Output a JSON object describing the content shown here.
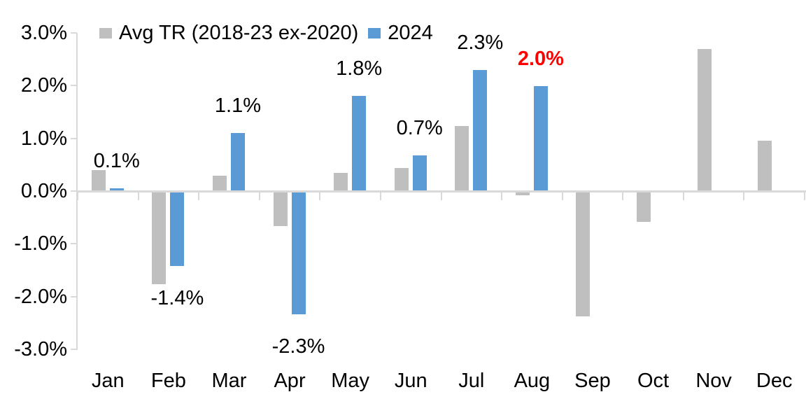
{
  "chart_data": {
    "type": "bar",
    "title": "",
    "xlabel": "",
    "ylabel": "",
    "categories": [
      "Jan",
      "Feb",
      "Mar",
      "Apr",
      "May",
      "Jun",
      "Jul",
      "Aug",
      "Sep",
      "Oct",
      "Nov",
      "Dec"
    ],
    "series": [
      {
        "name": "Avg TR (2018-23 ex-2020)",
        "color": "#BFBFBF",
        "values": [
          0.4,
          -1.76,
          0.29,
          -0.67,
          0.35,
          0.44,
          1.23,
          -0.08,
          -2.38,
          -0.58,
          2.7,
          0.95
        ]
      },
      {
        "name": "2024",
        "color": "#5B9BD5",
        "values": [
          0.05,
          -1.42,
          1.1,
          -2.33,
          1.81,
          0.68,
          2.29,
          1.99,
          null,
          null,
          null,
          null
        ]
      }
    ],
    "data_labels": [
      {
        "category": "Jan",
        "series": "2024",
        "text": "0.1%",
        "color": "#000000",
        "bold": false
      },
      {
        "category": "Feb",
        "series": "2024",
        "text": "-1.4%",
        "color": "#000000",
        "bold": false
      },
      {
        "category": "Mar",
        "series": "2024",
        "text": "1.1%",
        "color": "#000000",
        "bold": false
      },
      {
        "category": "Apr",
        "series": "2024",
        "text": "-2.3%",
        "color": "#000000",
        "bold": false
      },
      {
        "category": "May",
        "series": "2024",
        "text": "1.8%",
        "color": "#000000",
        "bold": false
      },
      {
        "category": "Jun",
        "series": "2024",
        "text": "0.7%",
        "color": "#000000",
        "bold": false
      },
      {
        "category": "Jul",
        "series": "2024",
        "text": "2.3%",
        "color": "#000000",
        "bold": false
      },
      {
        "category": "Aug",
        "series": "2024",
        "text": "2.0%",
        "color": "#FF0000",
        "bold": true
      }
    ],
    "y_axis": {
      "tick_labels": [
        "3.0%",
        "2.0%",
        "1.0%",
        "0.0%",
        "-1.0%",
        "-2.0%",
        "-3.0%"
      ],
      "min": -3.0,
      "max": 3.0,
      "grid": false
    },
    "legend_position": "top",
    "colors": {
      "axis": "#D9D9D9",
      "text": "#000000",
      "highlight": "#FF0000"
    }
  }
}
